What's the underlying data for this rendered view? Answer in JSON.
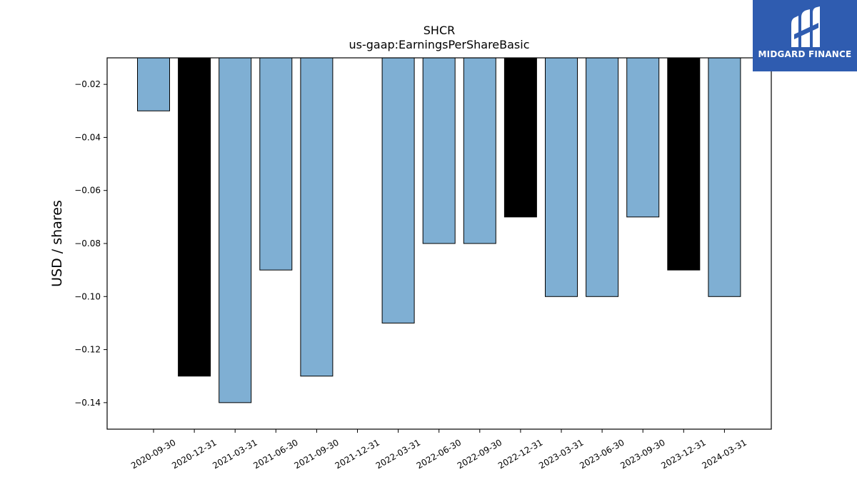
{
  "brand": {
    "name": "MIDGARD FINANCE",
    "background": "#2f5cb0"
  },
  "chart_data": {
    "type": "bar",
    "title": "SHCR",
    "subtitle": "us-gaap:EarningsPerShareBasic",
    "xlabel": "",
    "ylabel": "USD / shares",
    "categories": [
      "2020-09-30",
      "2020-12-31",
      "2021-03-31",
      "2021-06-30",
      "2021-09-30",
      "2021-12-31",
      "2022-03-31",
      "2022-06-30",
      "2022-09-30",
      "2022-12-31",
      "2023-03-31",
      "2023-06-30",
      "2023-09-30",
      "2023-12-31",
      "2024-03-31"
    ],
    "values": [
      -0.03,
      -0.13,
      -0.14,
      -0.09,
      -0.13,
      null,
      -0.11,
      -0.08,
      -0.08,
      -0.07,
      -0.1,
      -0.1,
      -0.07,
      -0.09,
      -0.1
    ],
    "fy_flags": [
      false,
      true,
      false,
      false,
      false,
      true,
      false,
      false,
      false,
      true,
      false,
      false,
      false,
      true,
      false
    ],
    "ylim": [
      -0.15,
      -0.01
    ],
    "yticks": [
      -0.02,
      -0.04,
      -0.06,
      -0.08,
      -0.1,
      -0.12,
      -0.14
    ],
    "ytick_labels": [
      "−0.02",
      "−0.04",
      "−0.06",
      "−0.08",
      "−0.10",
      "−0.12",
      "−0.14"
    ],
    "colors": {
      "quarter": "#7fafd3",
      "year_end": "#000000",
      "edge": "#000000"
    },
    "grid": false,
    "legend": "none"
  }
}
